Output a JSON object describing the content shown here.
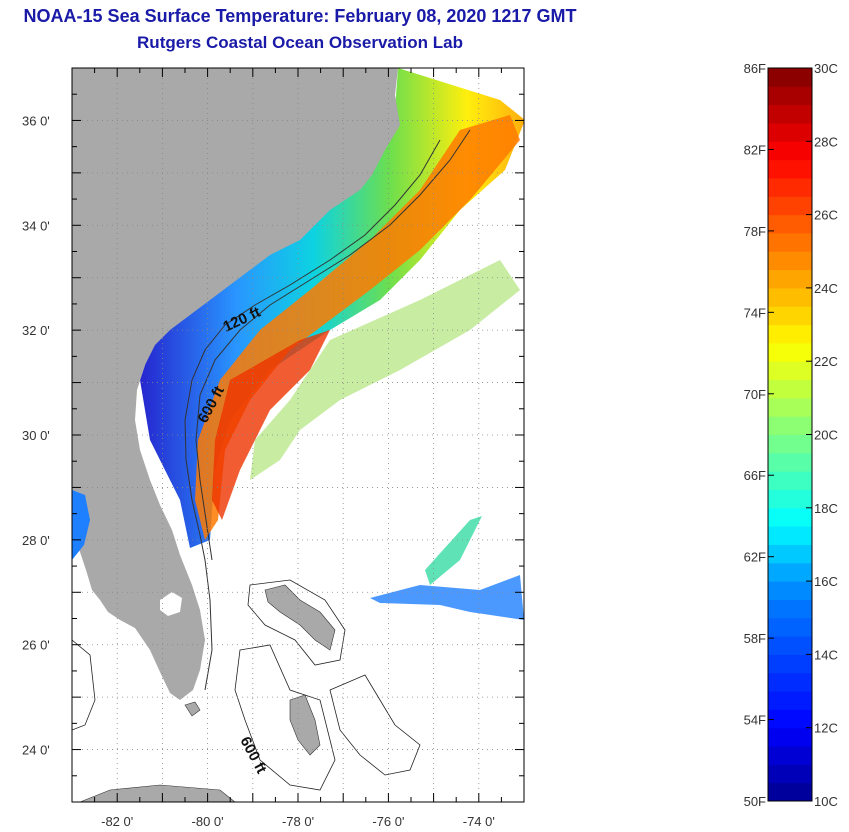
{
  "header": {
    "title": "NOAA-15 Sea Surface Temperature:  February 08, 2020 1217 GMT",
    "subtitle": "Rutgers Coastal Ocean Observation Lab"
  },
  "map": {
    "lat_labels": [
      "36 0'",
      "34 0'",
      "32 0'",
      "30 0'",
      "28 0'",
      "26 0'",
      "24 0'"
    ],
    "lon_labels": [
      "-82 0'",
      "-80 0'",
      "-78 0'",
      "-76 0'",
      "-74 0'"
    ],
    "lon_range": [
      -83,
      -73
    ],
    "lat_range": [
      23,
      37
    ],
    "contours": {
      "shelf_label": "120 ft",
      "slope_label": "600 ft",
      "slope_label_south": "600 ft"
    },
    "land_color": "#a9a9a9"
  },
  "colorbar": {
    "fahrenheit_labels": [
      "86F",
      "82F",
      "78F",
      "74F",
      "70F",
      "66F",
      "62F",
      "58F",
      "54F",
      "50F"
    ],
    "celsius_labels": [
      "30C",
      "28C",
      "26C",
      "24C",
      "22C",
      "20C",
      "18C",
      "16C",
      "14C",
      "12C",
      "10C"
    ],
    "range_c": [
      10,
      30
    ]
  }
}
